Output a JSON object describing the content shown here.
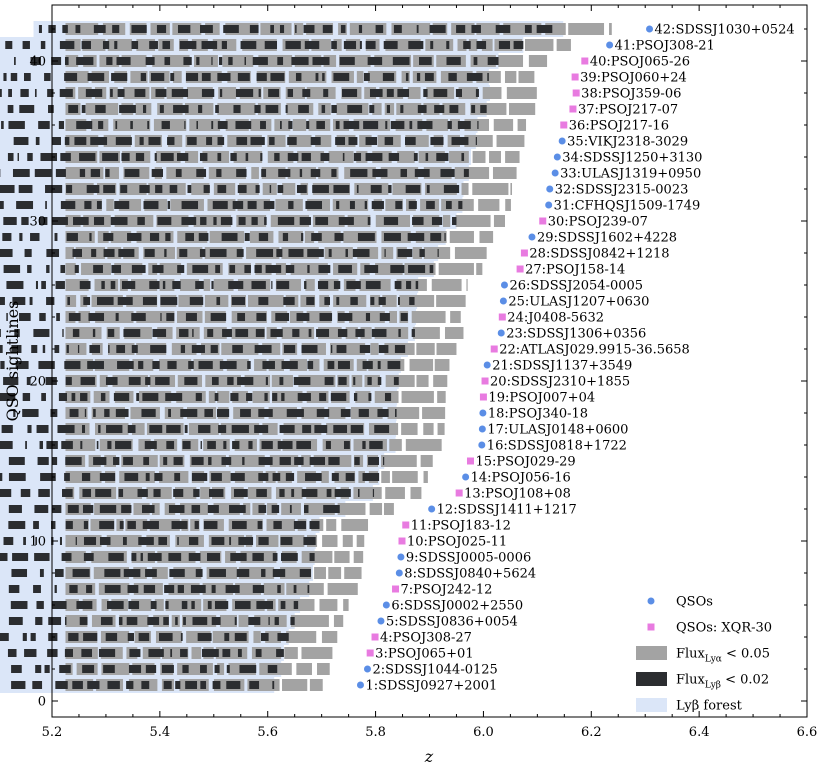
{
  "chart_data": {
    "type": "scatter",
    "xlabel": "z",
    "ylabel": "QSO sightlines",
    "xlim": [
      5.2,
      6.6
    ],
    "ylim": [
      -1,
      43.5
    ],
    "xticks": [
      "5.2",
      "5.4",
      "5.6",
      "5.8",
      "6.0",
      "6.2",
      "6.4",
      "6.6"
    ],
    "yticks": [
      "0",
      "10",
      "20",
      "30",
      "40"
    ],
    "colors": {
      "qso": "#5b8ee6",
      "xqr30": "#e87be0",
      "lya": "#a3a3a3",
      "lyb": "#2b2d30",
      "forest": "#dbe6f8"
    },
    "legend": {
      "position": "lower-right",
      "entries": [
        {
          "label": "QSOs",
          "kind": "qso"
        },
        {
          "label": "QSOs: XQR-30",
          "kind": "xqr30"
        },
        {
          "label": "Flux",
          "sub": "Lyα",
          "rest": " < 0.05",
          "kind": "lya"
        },
        {
          "label": "Flux",
          "sub": "Lyβ",
          "rest": " < 0.02",
          "kind": "lyb"
        },
        {
          "label": "Lyβ forest",
          "kind": "forest"
        }
      ]
    },
    "quasars": [
      {
        "id": 1,
        "name": "SDSSJ0927+2001",
        "z": 5.772,
        "xqr30": false
      },
      {
        "id": 2,
        "name": "SDSSJ1044-0125",
        "z": 5.785,
        "xqr30": false
      },
      {
        "id": 3,
        "name": "PSOJ065+01",
        "z": 5.79,
        "xqr30": true
      },
      {
        "id": 4,
        "name": "PSOJ308-27",
        "z": 5.799,
        "xqr30": true
      },
      {
        "id": 5,
        "name": "SDSSJ0836+0054",
        "z": 5.81,
        "xqr30": false
      },
      {
        "id": 6,
        "name": "SDSSJ0002+2550",
        "z": 5.82,
        "xqr30": false
      },
      {
        "id": 7,
        "name": "PSOJ242-12",
        "z": 5.837,
        "xqr30": true
      },
      {
        "id": 8,
        "name": "SDSSJ0840+5624",
        "z": 5.844,
        "xqr30": false
      },
      {
        "id": 9,
        "name": "SDSSJ0005-0006",
        "z": 5.847,
        "xqr30": false
      },
      {
        "id": 10,
        "name": "PSOJ025-11",
        "z": 5.849,
        "xqr30": true
      },
      {
        "id": 11,
        "name": "PSOJ183-12",
        "z": 5.856,
        "xqr30": true
      },
      {
        "id": 12,
        "name": "SDSSJ1411+1217",
        "z": 5.904,
        "xqr30": false
      },
      {
        "id": 13,
        "name": "PSOJ108+08",
        "z": 5.955,
        "xqr30": true
      },
      {
        "id": 14,
        "name": "PSOJ056-16",
        "z": 5.967,
        "xqr30": false
      },
      {
        "id": 15,
        "name": "PSOJ029-29",
        "z": 5.976,
        "xqr30": true
      },
      {
        "id": 16,
        "name": "SDSSJ0818+1722",
        "z": 5.997,
        "xqr30": false
      },
      {
        "id": 17,
        "name": "ULASJ0148+0600",
        "z": 5.998,
        "xqr30": false
      },
      {
        "id": 18,
        "name": "PSOJ340-18",
        "z": 5.999,
        "xqr30": false
      },
      {
        "id": 19,
        "name": "PSOJ007+04",
        "z": 6.0,
        "xqr30": true
      },
      {
        "id": 20,
        "name": "SDSSJ2310+1855",
        "z": 6.003,
        "xqr30": true
      },
      {
        "id": 21,
        "name": "SDSSJ1137+3549",
        "z": 6.007,
        "xqr30": false
      },
      {
        "id": 22,
        "name": "ATLASJ029.9915-36.5658",
        "z": 6.02,
        "xqr30": true
      },
      {
        "id": 23,
        "name": "SDSSJ1306+0356",
        "z": 6.033,
        "xqr30": false
      },
      {
        "id": 24,
        "name": "J0408-5632",
        "z": 6.035,
        "xqr30": true
      },
      {
        "id": 25,
        "name": "ULASJ1207+0630",
        "z": 6.037,
        "xqr30": false
      },
      {
        "id": 26,
        "name": "SDSSJ2054-0005",
        "z": 6.039,
        "xqr30": false
      },
      {
        "id": 27,
        "name": "PSOJ158-14",
        "z": 6.068,
        "xqr30": true
      },
      {
        "id": 28,
        "name": "SDSSJ0842+1218",
        "z": 6.076,
        "xqr30": true
      },
      {
        "id": 29,
        "name": "SDSSJ1602+4228",
        "z": 6.09,
        "xqr30": false
      },
      {
        "id": 30,
        "name": "PSOJ239-07",
        "z": 6.11,
        "xqr30": true
      },
      {
        "id": 31,
        "name": "CFHQSJ1509-1749",
        "z": 6.121,
        "xqr30": false
      },
      {
        "id": 32,
        "name": "SDSSJ2315-0023",
        "z": 6.123,
        "xqr30": false
      },
      {
        "id": 33,
        "name": "ULASJ1319+0950",
        "z": 6.133,
        "xqr30": false
      },
      {
        "id": 34,
        "name": "SDSSJ1250+3130",
        "z": 6.137,
        "xqr30": false
      },
      {
        "id": 35,
        "name": "VIKJ2318-3029",
        "z": 6.146,
        "xqr30": false
      },
      {
        "id": 36,
        "name": "PSOJ217-16",
        "z": 6.149,
        "xqr30": true
      },
      {
        "id": 37,
        "name": "PSOJ217-07",
        "z": 6.166,
        "xqr30": true
      },
      {
        "id": 38,
        "name": "PSOJ359-06",
        "z": 6.172,
        "xqr30": true
      },
      {
        "id": 39,
        "name": "PSOJ060+24",
        "z": 6.17,
        "xqr30": true
      },
      {
        "id": 40,
        "name": "PSOJ065-26",
        "z": 6.188,
        "xqr30": true
      },
      {
        "id": 41,
        "name": "PSOJ308-21",
        "z": 6.234,
        "xqr30": false
      },
      {
        "id": 42,
        "name": "SDSSJ1030+0524",
        "z": 6.308,
        "xqr30": false
      }
    ]
  }
}
